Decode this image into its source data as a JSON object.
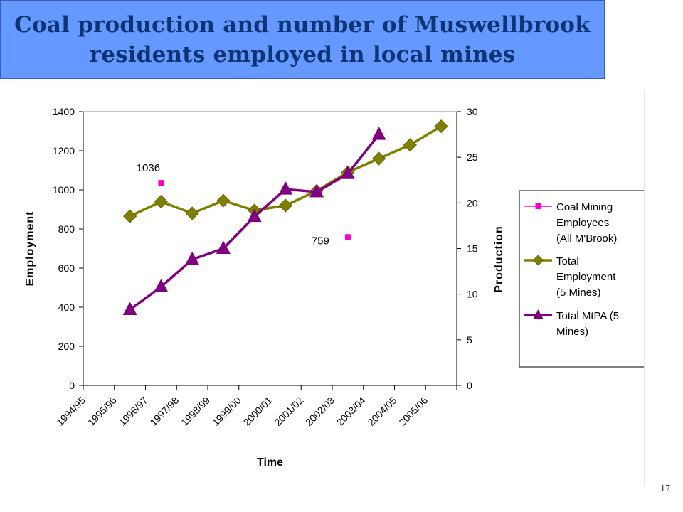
{
  "slide": {
    "title_line1": "Coal production and number of Muswellbrook",
    "title_line2": "residents employed in local mines",
    "page_number": "17"
  },
  "colors": {
    "title_background": "#6699ff",
    "title_text": "#0d3575",
    "coal_mining_employees": "#ff00cc",
    "total_employment": "#808000",
    "total_mtpa": "#800080"
  },
  "chart_data": {
    "type": "line",
    "xlabel": "Time",
    "ylabel": "Employment",
    "y2label": "Production",
    "categories": [
      "1994/95",
      "1995/96",
      "1996/97",
      "1997/98",
      "1998/99",
      "1999/00",
      "2000/01",
      "2001/02",
      "2002/03",
      "2003/04",
      "2004/05",
      "2005/06"
    ],
    "ylim": [
      0,
      1400
    ],
    "y_ticks": [
      0,
      200,
      400,
      600,
      800,
      1000,
      1200,
      1400
    ],
    "y2lim": [
      0,
      30
    ],
    "y2_ticks": [
      0,
      5,
      10,
      15,
      20,
      25,
      30
    ],
    "legend_position": "right",
    "series": [
      {
        "name": "Coal Mining Employees (All M'Brook)",
        "legend_lines": [
          "Coal Mining",
          "Employees",
          "(All M'Brook)"
        ],
        "axis": "left",
        "marker": "square",
        "line": false,
        "values": [
          null,
          null,
          1036,
          null,
          null,
          null,
          null,
          null,
          759,
          null,
          null,
          null
        ],
        "data_labels": [
          null,
          null,
          "1036",
          null,
          null,
          null,
          null,
          null,
          "759",
          null,
          null,
          null
        ]
      },
      {
        "name": "Total Employment (5 Mines)",
        "legend_lines": [
          "Total",
          "Employment",
          "(5 Mines)"
        ],
        "axis": "left",
        "marker": "diamond",
        "line": true,
        "values": [
          null,
          865,
          940,
          880,
          945,
          895,
          920,
          995,
          1090,
          1160,
          1230,
          1325
        ]
      },
      {
        "name": "Total MtPA (5 Mines)",
        "legend_lines": [
          "Total MtPA (5",
          "Mines)"
        ],
        "axis": "right",
        "marker": "triangle",
        "line": true,
        "values": [
          null,
          8.3,
          10.8,
          13.8,
          15.0,
          18.5,
          21.5,
          21.2,
          23.2,
          27.5,
          null,
          null
        ]
      }
    ]
  }
}
